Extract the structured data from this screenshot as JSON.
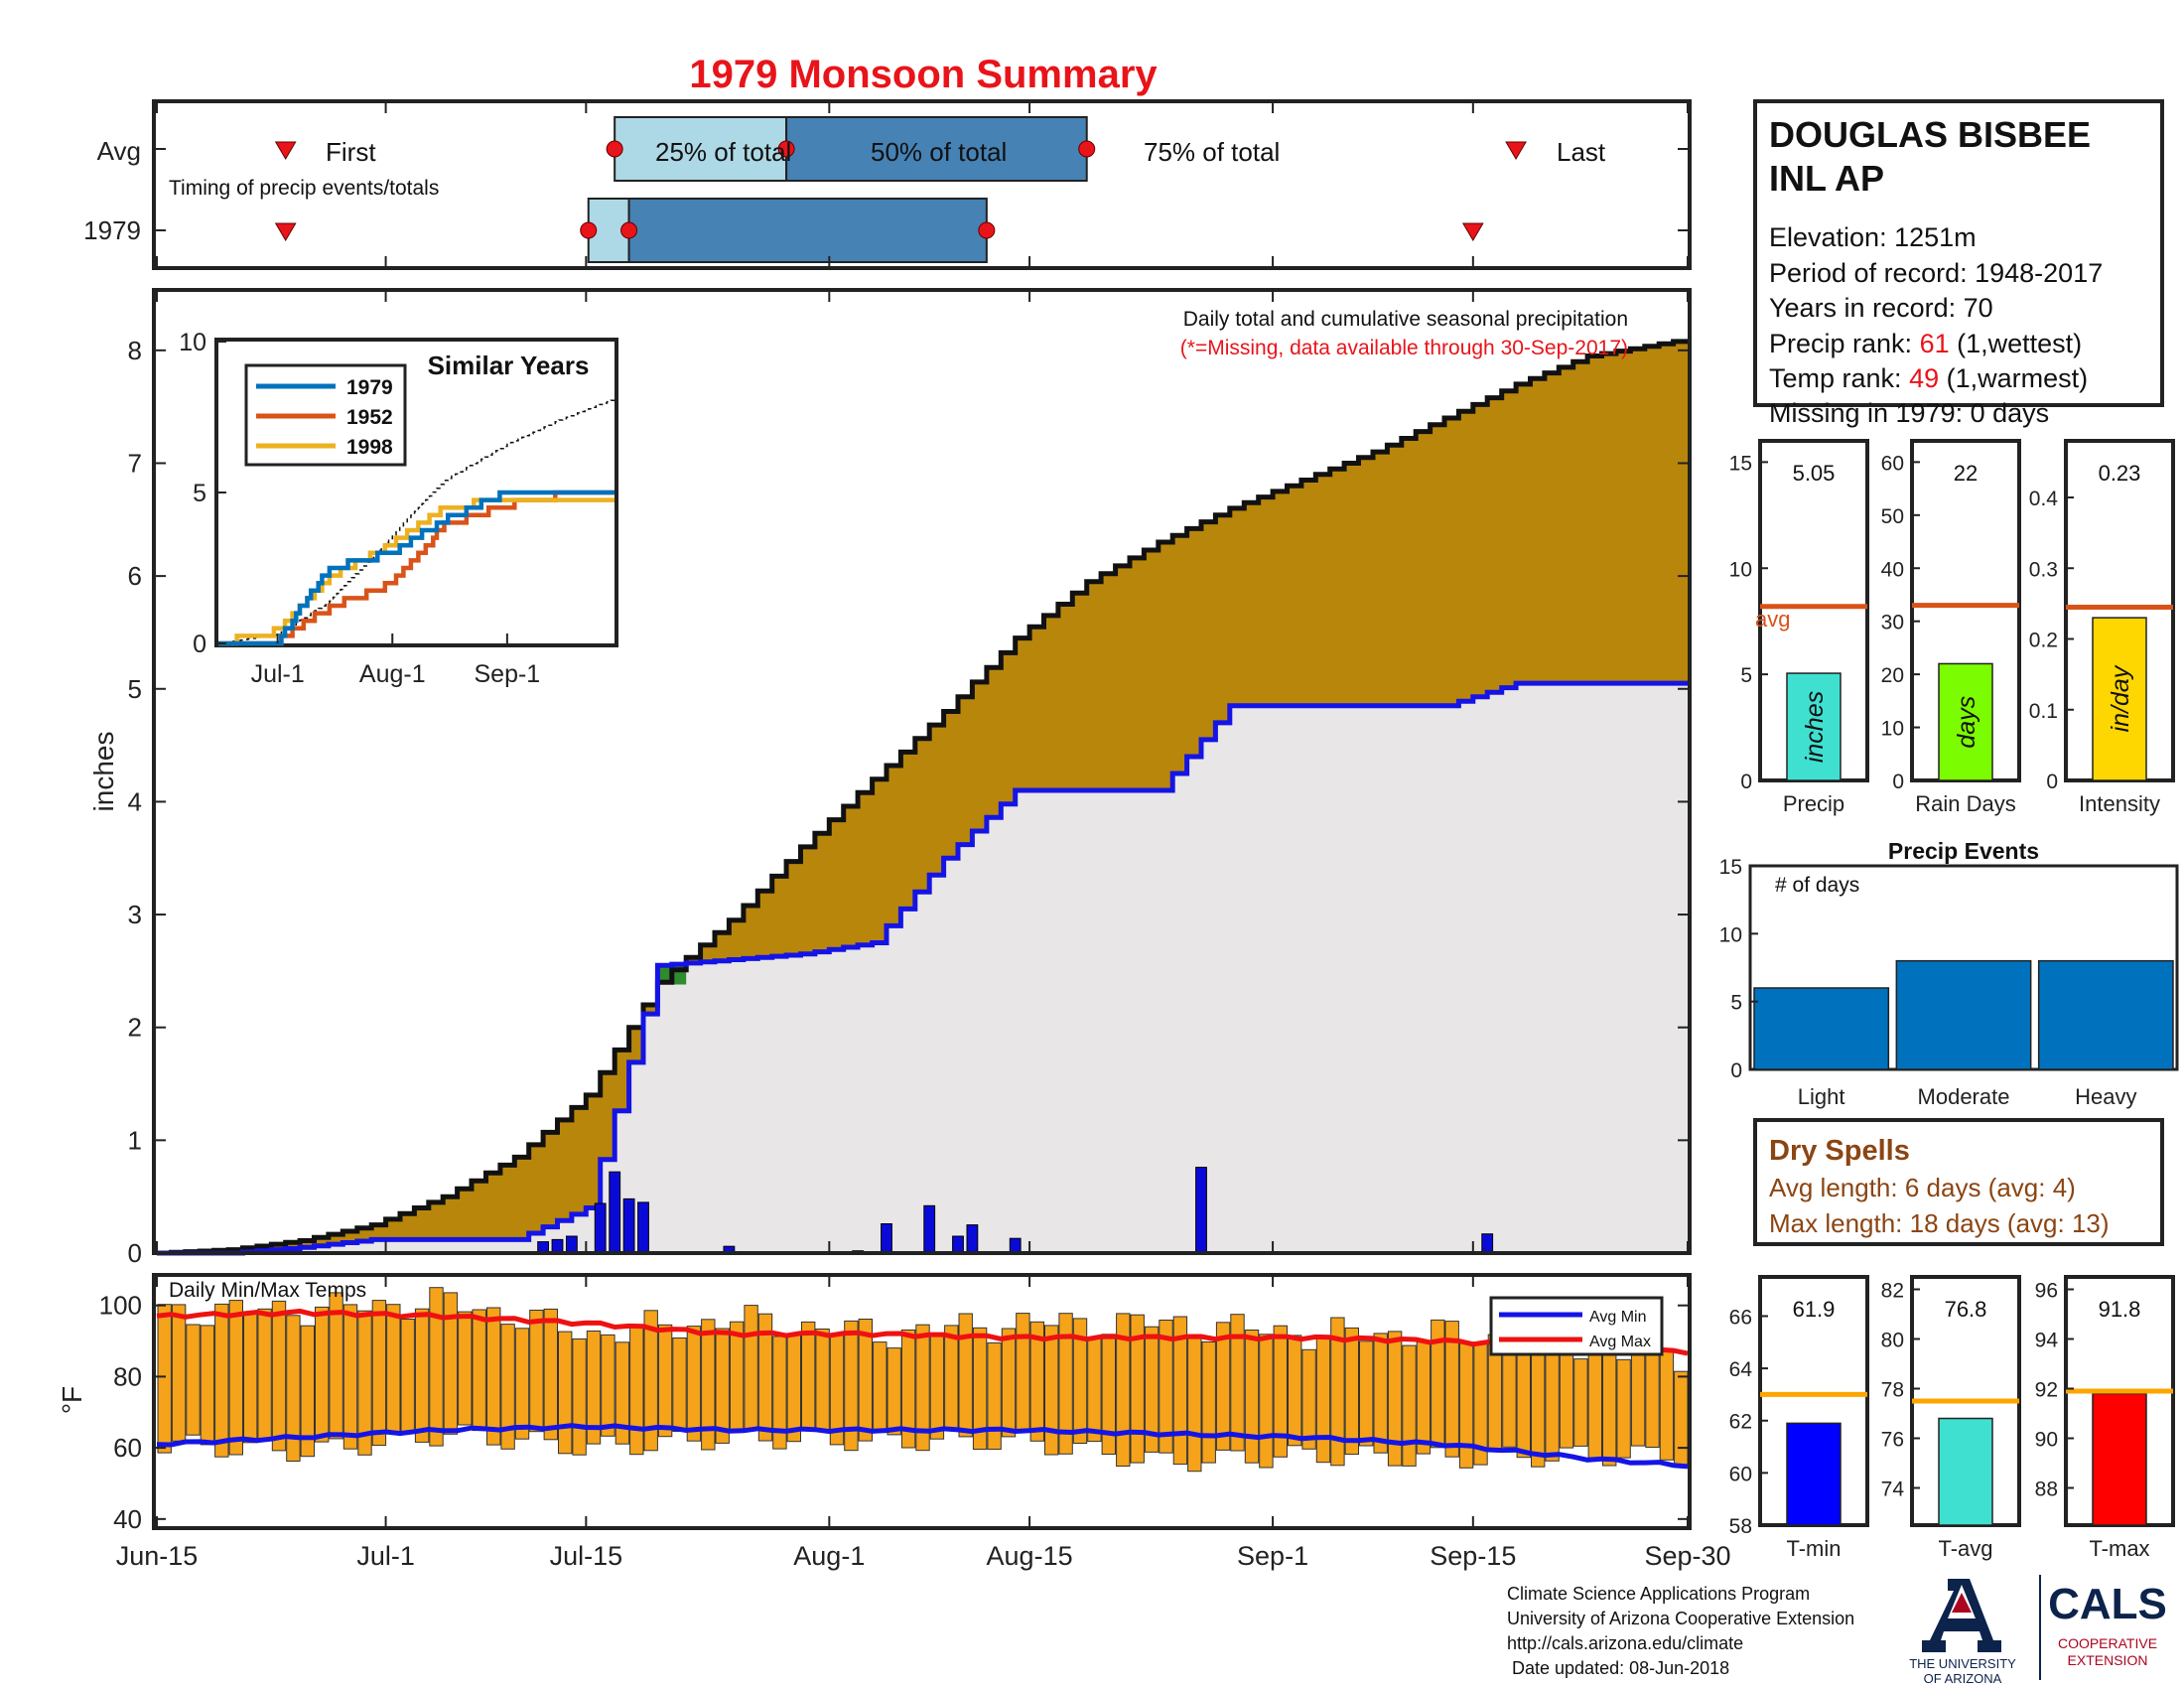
{
  "title": "1979 Monsoon Summary",
  "timing": {
    "row_avg": "Avg",
    "row_year": "1979",
    "first": "First",
    "last": "Last",
    "p25": "25% of total",
    "p50": "50% of total",
    "p75": "75% of total",
    "caption": "Timing of precip events/totals",
    "avg_markers": {
      "first": "Jun-24",
      "p25": "Jul-17",
      "p50": "Jul-29",
      "p75": "Aug-19",
      "last": "Sep-18"
    },
    "year_markers": {
      "first": "Jun-24",
      "p25": "Jul-16",
      "p50": "Jul-18",
      "p75": "Aug-12",
      "last": "Sep-15"
    }
  },
  "station": {
    "name_line1": "DOUGLAS BISBEE",
    "name_line2": "INL AP",
    "elevation": "Elevation: 1251m",
    "period": "Period of record: 1948-2017",
    "years": "Years in record: 70",
    "precip_rank_label": "Precip rank: ",
    "precip_rank_value": "61",
    "precip_rank_note": " (1,wettest)",
    "temp_rank_label": "Temp rank: ",
    "temp_rank_value": "49",
    "temp_rank_note": " (1,warmest)",
    "missing": "Missing in 1979: 0 days"
  },
  "main": {
    "ylabel": "inches",
    "note1": "Daily total and cumulative seasonal precipitation",
    "note2": "(*=Missing, data available through 30-Sep-2017)",
    "xticks": [
      "Jun-15",
      "Jul-1",
      "Jul-15",
      "Aug-1",
      "Aug-15",
      "Sep-1",
      "Sep-15",
      "Sep-30"
    ],
    "yticks": [
      "0",
      "1",
      "2",
      "3",
      "4",
      "5",
      "6",
      "7",
      "8"
    ]
  },
  "inset": {
    "title": "Similar Years",
    "series": [
      "1979",
      "1952",
      "1998"
    ],
    "yticks": [
      "0",
      "5",
      "10"
    ],
    "xticks": [
      "Jul-1",
      "Aug-1",
      "Sep-1"
    ]
  },
  "temps": {
    "caption": "Daily Min/Max Temps",
    "ylabel": "°F",
    "yticks": [
      "40",
      "60",
      "80",
      "100"
    ],
    "legend_min": "Avg Min",
    "legend_max": "Avg Max"
  },
  "summary": {
    "precip": {
      "value": "5.05",
      "label": "Precip",
      "unit": "inches",
      "yticks": [
        "0",
        "5",
        "10",
        "15"
      ]
    },
    "raindays": {
      "value": "22",
      "label": "Rain Days",
      "unit": "days",
      "yticks": [
        "0",
        "10",
        "20",
        "30",
        "40",
        "50",
        "60"
      ]
    },
    "intensity": {
      "value": "0.23",
      "label": "Intensity",
      "unit": "in/day",
      "yticks": [
        "0",
        "0.1",
        "0.2",
        "0.3",
        "0.4"
      ]
    },
    "avg_label": "avg"
  },
  "events": {
    "title": "Precip Events",
    "caption": "# of days",
    "categories": [
      "Light",
      "Moderate",
      "Heavy"
    ],
    "yticks": [
      "0",
      "5",
      "10",
      "15"
    ]
  },
  "dry": {
    "title": "Dry Spells",
    "avg_length": "Avg length: 6 days (avg: 4)",
    "max_length": "Max length: 18 days (avg: 13)"
  },
  "tempsum": {
    "tmin": {
      "value": "61.9",
      "label": "T-min",
      "yticks": [
        "58",
        "60",
        "62",
        "64",
        "66"
      ]
    },
    "tavg": {
      "value": "76.8",
      "label": "T-avg",
      "yticks": [
        "74",
        "76",
        "78",
        "80",
        "82"
      ]
    },
    "tmax": {
      "value": "91.8",
      "label": "T-max",
      "yticks": [
        "88",
        "90",
        "92",
        "94",
        "96"
      ]
    }
  },
  "footer": {
    "line1": "Climate Science Applications Program",
    "line2": "University of Arizona Cooperative Extension",
    "line3": "http://cals.arizona.edu/climate",
    "line4": " Date updated: 08-Jun-2018",
    "ua1": "THE UNIVERSITY",
    "ua2": "OF ARIZONA",
    "cals": "CALS",
    "coop1": "COOPERATIVE",
    "coop2": "EXTENSION"
  },
  "colors": {
    "title": "#e8141a",
    "cum_avg_fill": "#b8860b",
    "obs_fill": "#e8e6e6",
    "obs_line": "#1414e6",
    "daily_bar": "#0a0ad8",
    "temp_bar": "#f5a31a",
    "s1979": "#0072bd",
    "s1952": "#d95319",
    "s1998": "#edb120",
    "avg_line": "#d95319",
    "precip_bar": "#40e0d0",
    "raindays_bar": "#7cfc00",
    "intensity_bar": "#ffd700",
    "events_bar": "#0072bd",
    "dry": "#8b4513",
    "tmin_bar": "#0000ff",
    "tavg_bar": "#40e0d0",
    "tmax_bar": "#ff0000",
    "tline": "#ffa500",
    "ua_blue": "#0c234b",
    "ua_red": "#ab0520"
  },
  "chart_data": [
    {
      "type": "area",
      "name": "Daily total and cumulative seasonal precipitation",
      "x": [
        "Jun-15",
        "Jun-20",
        "Jun-25",
        "Jun-30",
        "Jul-5",
        "Jul-10",
        "Jul-15",
        "Jul-20",
        "Jul-25",
        "Jul-30",
        "Aug-4",
        "Aug-9",
        "Aug-14",
        "Aug-19",
        "Aug-24",
        "Aug-29",
        "Sep-3",
        "Sep-8",
        "Sep-13",
        "Sep-18",
        "Sep-23",
        "Sep-30"
      ],
      "series": [
        {
          "name": "avg",
          "values": [
            0.0,
            0.03,
            0.11,
            0.25,
            0.5,
            0.85,
            1.4,
            2.4,
            2.95,
            3.6,
            4.2,
            4.8,
            5.45,
            5.95,
            6.3,
            6.6,
            6.85,
            7.1,
            7.4,
            7.7,
            7.95,
            8.1
          ]
        },
        {
          "name": "1979",
          "values": [
            0.0,
            0.0,
            0.05,
            0.12,
            0.12,
            0.12,
            0.4,
            2.55,
            2.6,
            2.65,
            2.75,
            3.5,
            4.1,
            4.1,
            4.1,
            4.85,
            4.85,
            4.85,
            4.85,
            5.05,
            5.05,
            5.05
          ]
        }
      ],
      "daily_bars": [
        {
          "x": "Jul-12",
          "y": 0.1
        },
        {
          "x": "Jul-13",
          "y": 0.12
        },
        {
          "x": "Jul-14",
          "y": 0.15
        },
        {
          "x": "Jul-16",
          "y": 0.44
        },
        {
          "x": "Jul-17",
          "y": 0.72
        },
        {
          "x": "Jul-18",
          "y": 0.48
        },
        {
          "x": "Jul-19",
          "y": 0.45
        },
        {
          "x": "Jul-25",
          "y": 0.06
        },
        {
          "x": "Aug-3",
          "y": 0.02
        },
        {
          "x": "Aug-5",
          "y": 0.26
        },
        {
          "x": "Aug-8",
          "y": 0.42
        },
        {
          "x": "Aug-10",
          "y": 0.15
        },
        {
          "x": "Aug-11",
          "y": 0.25
        },
        {
          "x": "Aug-14",
          "y": 0.13
        },
        {
          "x": "Aug-27",
          "y": 0.76
        },
        {
          "x": "Sep-16",
          "y": 0.17
        }
      ],
      "ylabel": "inches",
      "ylim": [
        0,
        8.5
      ]
    },
    {
      "type": "line",
      "name": "Similar Years",
      "x": [
        "Jun-15",
        "Jul-1",
        "Jul-15",
        "Aug-1",
        "Aug-15",
        "Sep-1",
        "Sep-15",
        "Sep-30"
      ],
      "series": [
        {
          "name": "1979",
          "values": [
            0,
            0.1,
            2.5,
            3.0,
            4.1,
            5.0,
            5.0,
            5.1
          ]
        },
        {
          "name": "1952",
          "values": [
            0,
            0.1,
            1.2,
            2.0,
            3.9,
            4.6,
            4.9,
            4.9
          ]
        },
        {
          "name": "1998",
          "values": [
            0,
            0.4,
            2.2,
            3.3,
            4.5,
            4.8,
            4.8,
            4.8
          ]
        },
        {
          "name": "avg",
          "values": [
            0,
            0.3,
            1.4,
            3.6,
            5.4,
            6.6,
            7.4,
            8.1
          ]
        }
      ],
      "ylim": [
        0,
        10
      ]
    },
    {
      "type": "bar",
      "name": "Daily Min/Max Temps",
      "x": [
        "Jun-15",
        "Jun-25",
        "Jul-5",
        "Jul-15",
        "Jul-25",
        "Aug-4",
        "Aug-14",
        "Aug-24",
        "Sep-3",
        "Sep-13",
        "Sep-23",
        "Sep-30"
      ],
      "series": [
        {
          "name": "max",
          "values": [
            98,
            99,
            101,
            92,
            96,
            92,
            95,
            95,
            92,
            92,
            88,
            85
          ]
        },
        {
          "name": "min",
          "values": [
            61,
            59,
            64,
            60,
            63,
            62,
            62,
            56,
            58,
            57,
            58,
            58
          ]
        },
        {
          "name": "Avg Max",
          "values": [
            97,
            98,
            97,
            95,
            92,
            92,
            91,
            91,
            91,
            90,
            88,
            87
          ]
        },
        {
          "name": "Avg Min",
          "values": [
            61,
            63,
            65,
            66,
            65,
            65,
            65,
            64,
            63,
            61,
            57,
            55
          ]
        }
      ],
      "ylabel": "°F",
      "ylim": [
        38,
        108
      ]
    },
    {
      "type": "bar",
      "name": "Precip",
      "values": [
        5.05
      ],
      "avg": 8.2,
      "ylim": [
        0,
        16
      ]
    },
    {
      "type": "bar",
      "name": "Rain Days",
      "values": [
        22
      ],
      "avg": 33,
      "ylim": [
        0,
        64
      ]
    },
    {
      "type": "bar",
      "name": "Intensity",
      "values": [
        0.23
      ],
      "avg": 0.245,
      "ylim": [
        0,
        0.48
      ]
    },
    {
      "type": "bar",
      "name": "Precip Events",
      "categories": [
        "Light",
        "Moderate",
        "Heavy"
      ],
      "values": [
        6,
        8,
        8
      ],
      "ylim": [
        0,
        15
      ]
    },
    {
      "type": "bar",
      "name": "T-min",
      "values": [
        61.9
      ],
      "avg": 63,
      "ylim": [
        58,
        67.5
      ]
    },
    {
      "type": "bar",
      "name": "T-avg",
      "values": [
        76.8
      ],
      "avg": 77.5,
      "ylim": [
        72.5,
        82.5
      ]
    },
    {
      "type": "bar",
      "name": "T-max",
      "values": [
        91.8
      ],
      "avg": 91.9,
      "ylim": [
        86.5,
        96.5
      ]
    }
  ]
}
